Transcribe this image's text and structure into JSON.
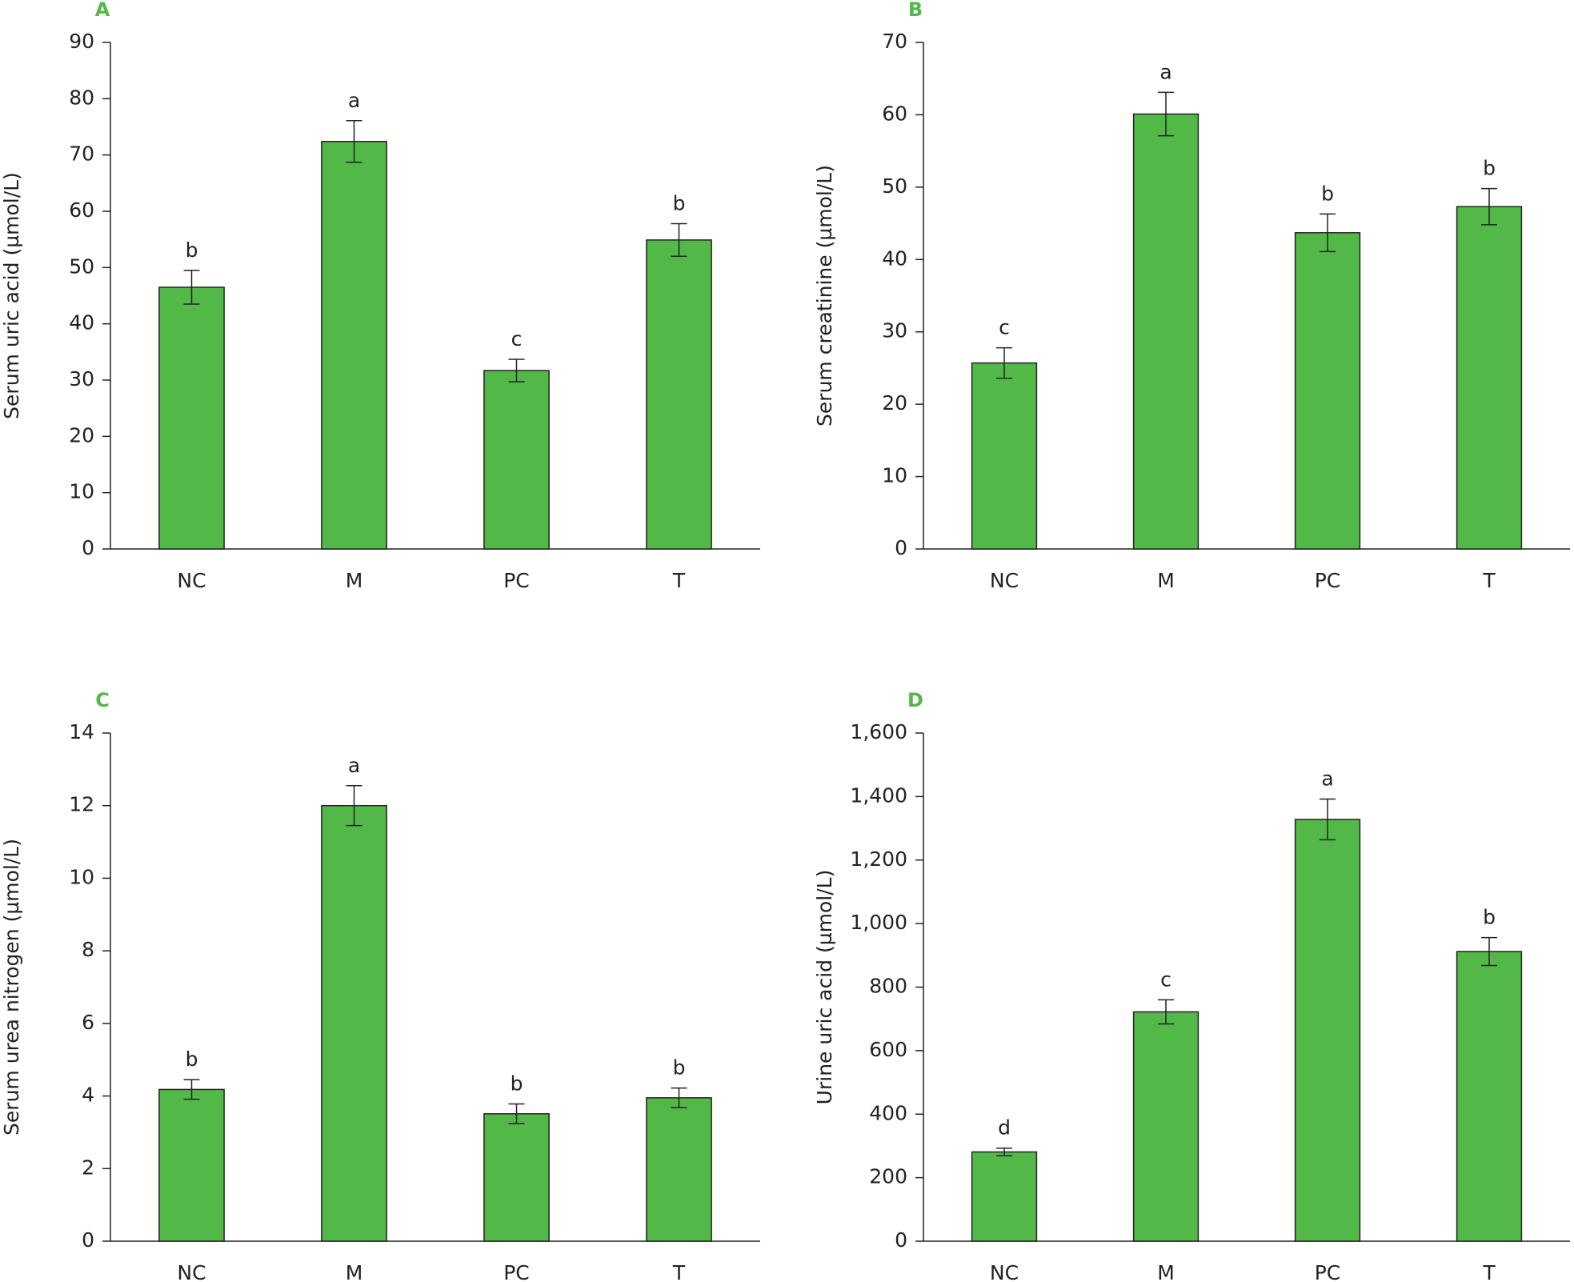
{
  "chart_data": [
    {
      "type": "bar",
      "label": "A",
      "y_label": "Serum uric acid (µmol/L)",
      "categories": [
        "NC",
        "M",
        "PC",
        "T"
      ],
      "values": [
        46.5,
        72.4,
        31.7,
        54.9
      ],
      "errors": [
        3,
        3.7,
        2,
        2.9
      ],
      "annotations": [
        "b",
        "a",
        "c",
        "b"
      ],
      "color": "#52b848",
      "ylim": [
        0,
        90
      ],
      "yticks": [
        0,
        10,
        20,
        30,
        40,
        50,
        60,
        70,
        80,
        90
      ]
    },
    {
      "type": "bar",
      "label": "B",
      "y_label": "Serum creatinine (µmol/L)",
      "categories": [
        "NC",
        "M",
        "PC",
        "T"
      ],
      "values": [
        25.7,
        60.1,
        43.7,
        47.3
      ],
      "errors": [
        2.1,
        3,
        2.6,
        2.5
      ],
      "annotations": [
        "c",
        "a",
        "b",
        "b"
      ],
      "color": "#52b848",
      "ylim": [
        0,
        70
      ],
      "yticks": [
        0,
        10,
        20,
        30,
        40,
        50,
        60,
        70
      ]
    },
    {
      "type": "bar",
      "label": "C",
      "y_label": "Serum urea nitrogen (µmol/L)",
      "categories": [
        "NC",
        "M",
        "PC",
        "T"
      ],
      "values": [
        4.18,
        12.0,
        3.51,
        3.95
      ],
      "errors": [
        0.27,
        0.55,
        0.27,
        0.27
      ],
      "annotations": [
        "b",
        "a",
        "b",
        "b"
      ],
      "color": "#52b848",
      "ylim": [
        0,
        14
      ],
      "yticks": [
        0,
        2,
        4,
        6,
        8,
        10,
        12,
        14
      ]
    },
    {
      "type": "bar",
      "label": "D",
      "y_label": "Urine uric acid (µmol/L)",
      "categories": [
        "NC",
        "M",
        "PC",
        "T"
      ],
      "values": [
        281,
        722,
        1328,
        912
      ],
      "errors": [
        12,
        38,
        64,
        44
      ],
      "annotations": [
        "d",
        "c",
        "a",
        "b"
      ],
      "color": "#52b848",
      "ylim": [
        0,
        1600
      ],
      "yticks": [
        0,
        200,
        400,
        600,
        800,
        {
          "value": 1000,
          "label": "1,000"
        },
        {
          "value": 1200,
          "label": "1,200"
        },
        {
          "value": 1400,
          "label": "1,400"
        },
        {
          "value": 1600,
          "label": "1,600"
        }
      ]
    }
  ]
}
